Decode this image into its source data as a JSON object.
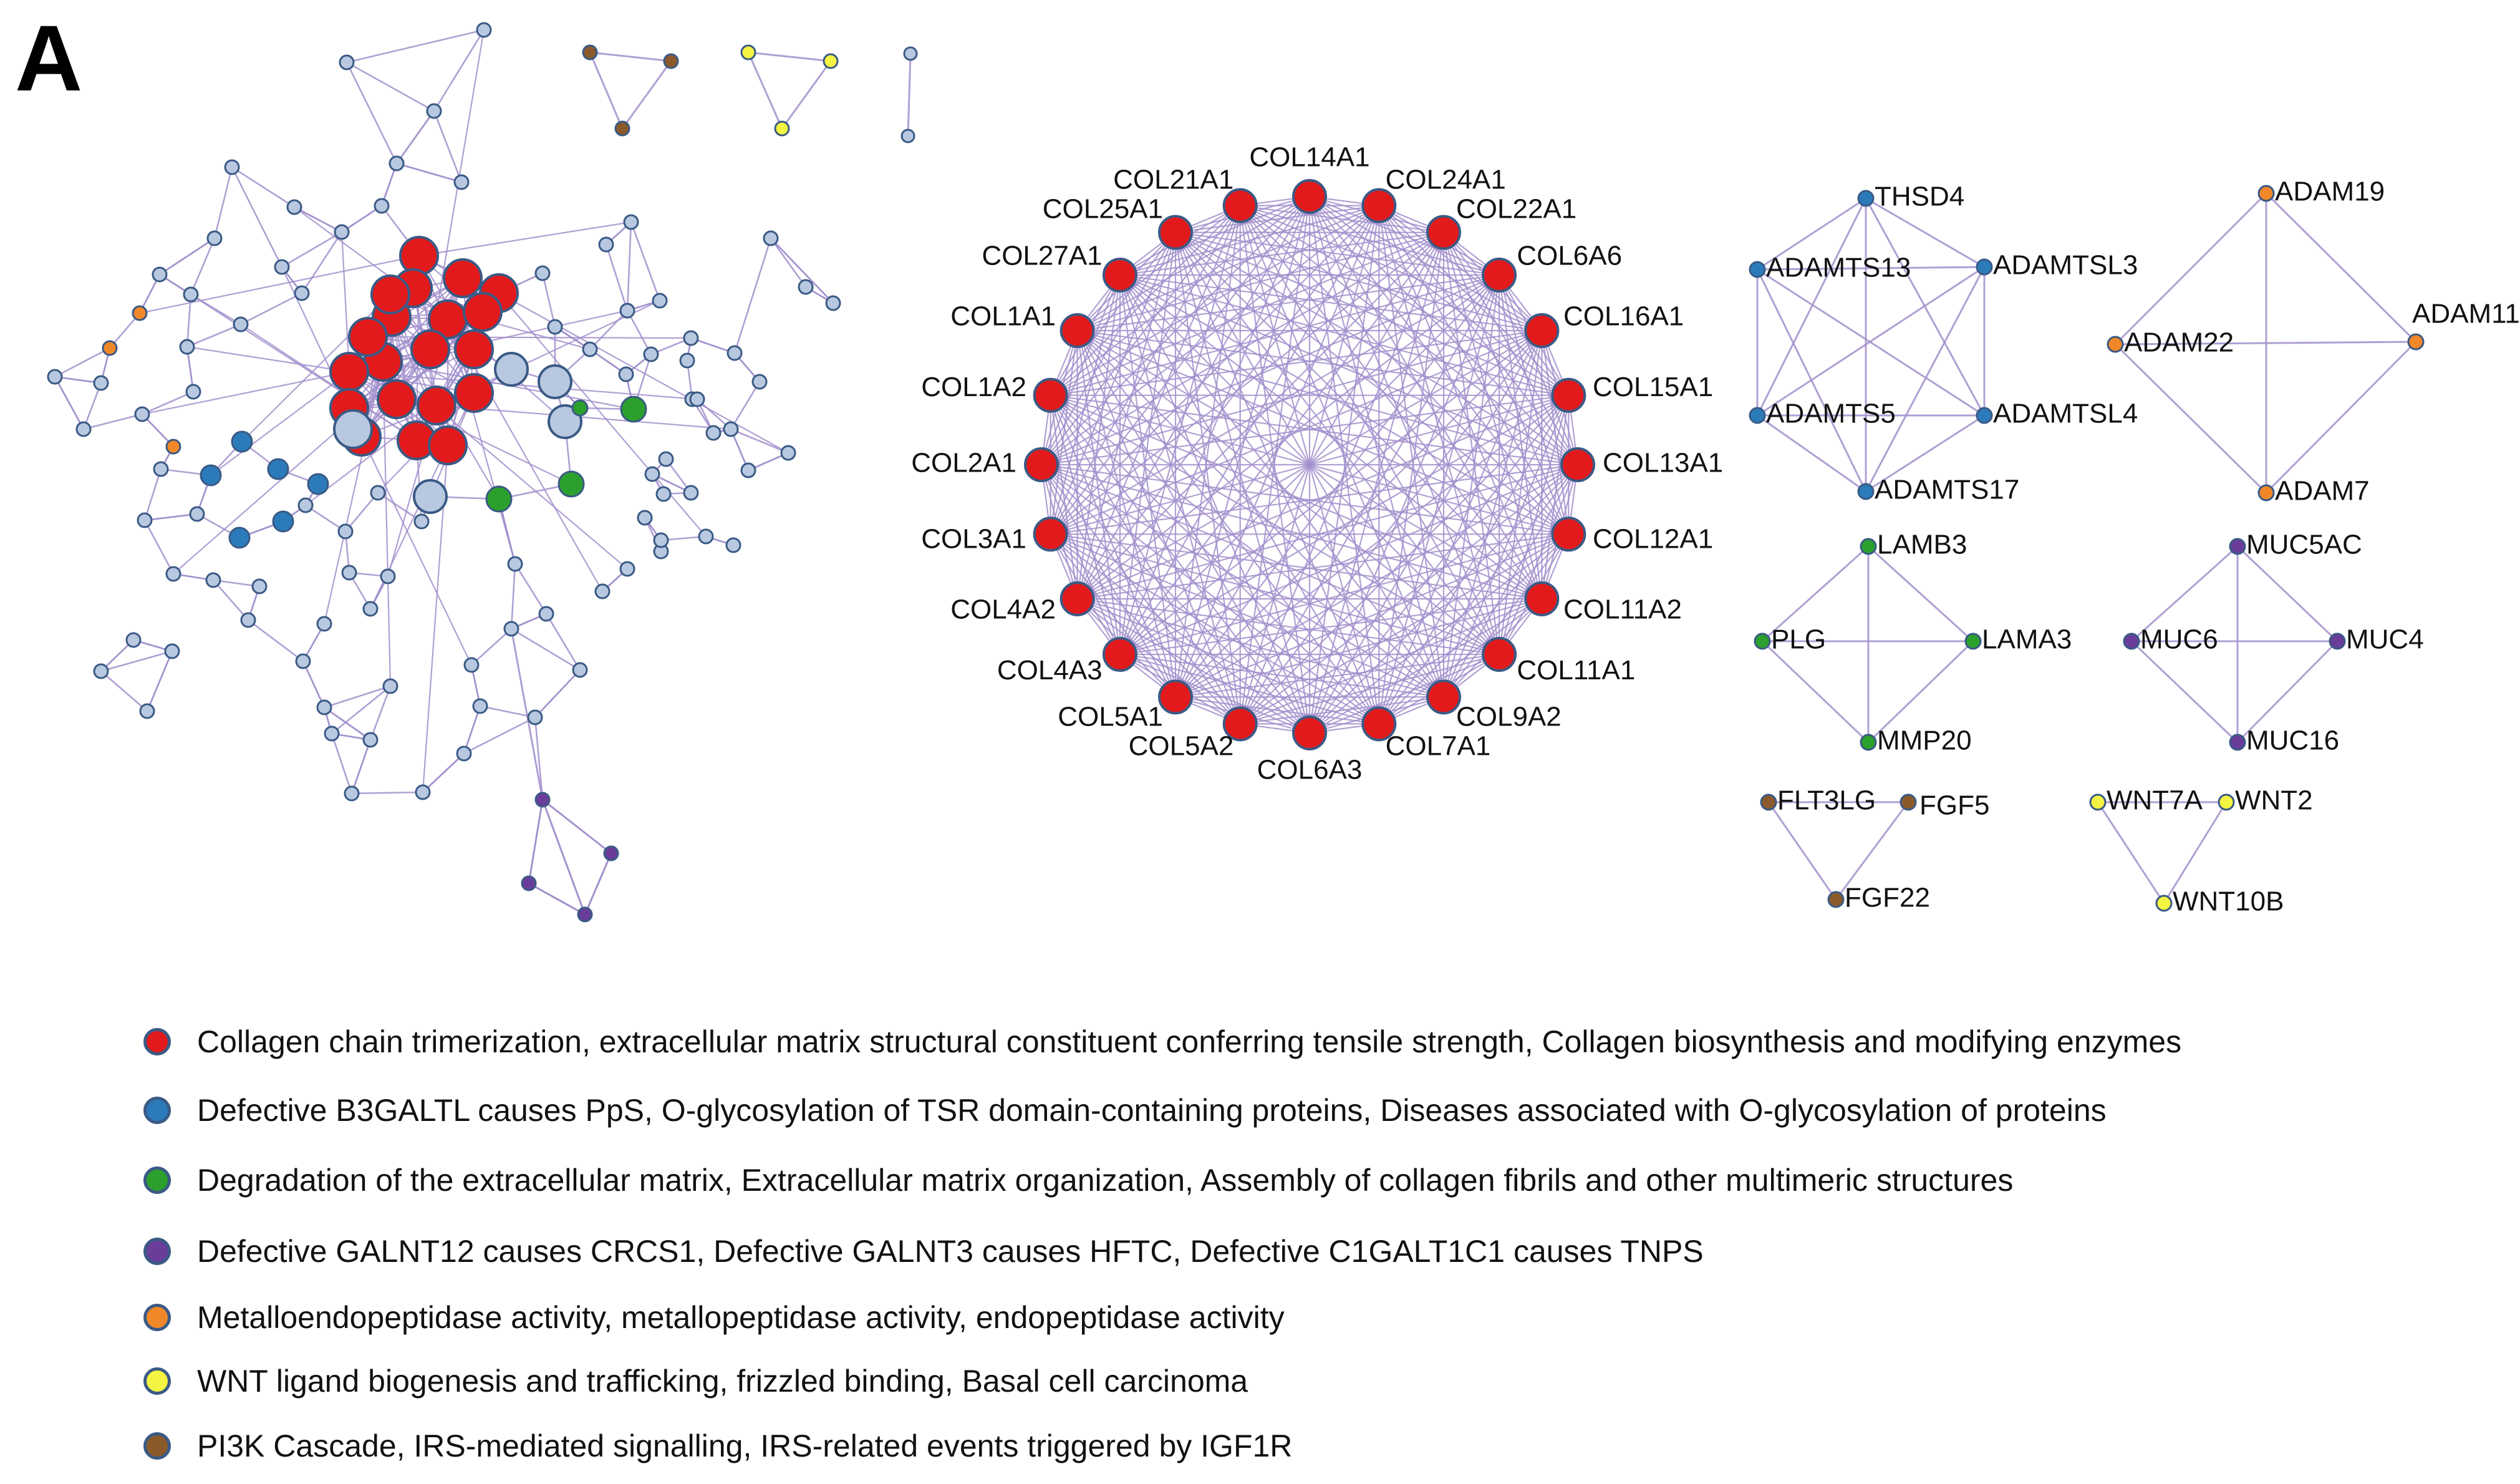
{
  "panel_label": "A",
  "colors": {
    "edge": "#a28fcc",
    "collagen": "#e31a1c",
    "b3galtl": "#2b7bba",
    "degradation": "#2ca02c",
    "galnt": "#6a3d9a",
    "metallo": "#f0882a",
    "wnt": "#f4f442",
    "pi3k": "#8b5a2b",
    "other": "#b8c8e0",
    "node_stroke": "#3a5a85"
  },
  "collagen_ring": {
    "nodes": [
      "COL14A1",
      "COL24A1",
      "COL22A1",
      "COL6A6",
      "COL16A1",
      "COL15A1",
      "COL13A1",
      "COL12A1",
      "COL11A2",
      "COL11A1",
      "COL9A2",
      "COL7A1",
      "COL6A3",
      "COL5A2",
      "COL5A1",
      "COL4A3",
      "COL4A2",
      "COL3A1",
      "COL2A1",
      "COL1A2",
      "COL1A1",
      "COL27A1",
      "COL25A1",
      "COL21A1"
    ]
  },
  "modules": [
    {
      "id": "adamts",
      "nodes": [
        "THSD4",
        "ADAMTSL3",
        "ADAMTSL4",
        "ADAMTS17",
        "ADAMTS5",
        "ADAMTS13"
      ],
      "color_key": "b3galtl"
    },
    {
      "id": "adam",
      "nodes": [
        "ADAM19",
        "ADAM11",
        "ADAM7",
        "ADAM22"
      ],
      "color_key": "metallo"
    },
    {
      "id": "laminin",
      "nodes": [
        "LAMB3",
        "LAMA3",
        "MMP20",
        "PLG"
      ],
      "color_key": "degradation"
    },
    {
      "id": "mucin",
      "nodes": [
        "MUC5AC",
        "MUC4",
        "MUC16",
        "MUC6"
      ],
      "color_key": "galnt"
    },
    {
      "id": "fgf",
      "nodes": [
        "FLT3LG",
        "FGF5",
        "FGF22"
      ],
      "color_key": "pi3k"
    },
    {
      "id": "wnt",
      "nodes": [
        "WNT7A",
        "WNT2",
        "WNT10B"
      ],
      "color_key": "wnt"
    }
  ],
  "legend": [
    {
      "color_key": "collagen",
      "text": "Collagen chain trimerization, extracellular matrix structural constituent conferring tensile strength, Collagen biosynthesis and modifying enzymes"
    },
    {
      "color_key": "b3galtl",
      "text": "Defective B3GALTL causes PpS, O-glycosylation of TSR domain-containing proteins, Diseases associated with O-glycosylation of proteins"
    },
    {
      "color_key": "degradation",
      "text": "Degradation of the extracellular matrix, Extracellular matrix organization, Assembly of collagen fibrils and other multimeric structures"
    },
    {
      "color_key": "galnt",
      "text": "Defective GALNT12 causes CRCS1, Defective GALNT3 causes HFTC, Defective C1GALT1C1 causes TNPS"
    },
    {
      "color_key": "metallo",
      "text": "Metalloendopeptidase activity, metallopeptidase activity, endopeptidase activity"
    },
    {
      "color_key": "wnt",
      "text": "WNT ligand biogenesis and trafficking, frizzled binding, Basal cell carcinoma"
    },
    {
      "color_key": "pi3k",
      "text": "PI3K Cascade, IRS-mediated signalling, IRS-related events triggered by IGF1R"
    }
  ]
}
